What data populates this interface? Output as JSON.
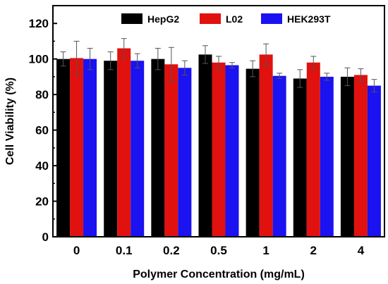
{
  "chart_data": {
    "type": "bar",
    "xlabel": "Polymer Concentration (mg/mL)",
    "ylabel": "Cell Viability (%)",
    "ylim": [
      0,
      130
    ],
    "yticks": [
      0,
      20,
      40,
      60,
      80,
      100,
      120
    ],
    "categories": [
      "0",
      "0.1",
      "0.2",
      "0.5",
      "1",
      "2",
      "4"
    ],
    "grid": false,
    "legend_position": "top",
    "series": [
      {
        "name": "HepG2",
        "color": "#000000",
        "values": [
          100,
          99,
          100,
          102.5,
          94.5,
          89,
          90
        ],
        "errors": [
          4,
          5,
          6,
          5,
          4.5,
          5,
          5
        ]
      },
      {
        "name": "L02",
        "color": "#e0110e",
        "values": [
          100.5,
          106,
          97,
          98,
          102.5,
          98,
          91
        ],
        "errors": [
          9.5,
          5.5,
          9.5,
          3.5,
          6,
          3.5,
          3.5
        ]
      },
      {
        "name": "HEK293T",
        "color": "#1a12f0",
        "values": [
          100,
          99,
          95,
          96.5,
          90.5,
          90,
          85
        ],
        "errors": [
          6,
          4,
          4,
          1.5,
          1.5,
          2,
          3.5
        ]
      }
    ]
  }
}
